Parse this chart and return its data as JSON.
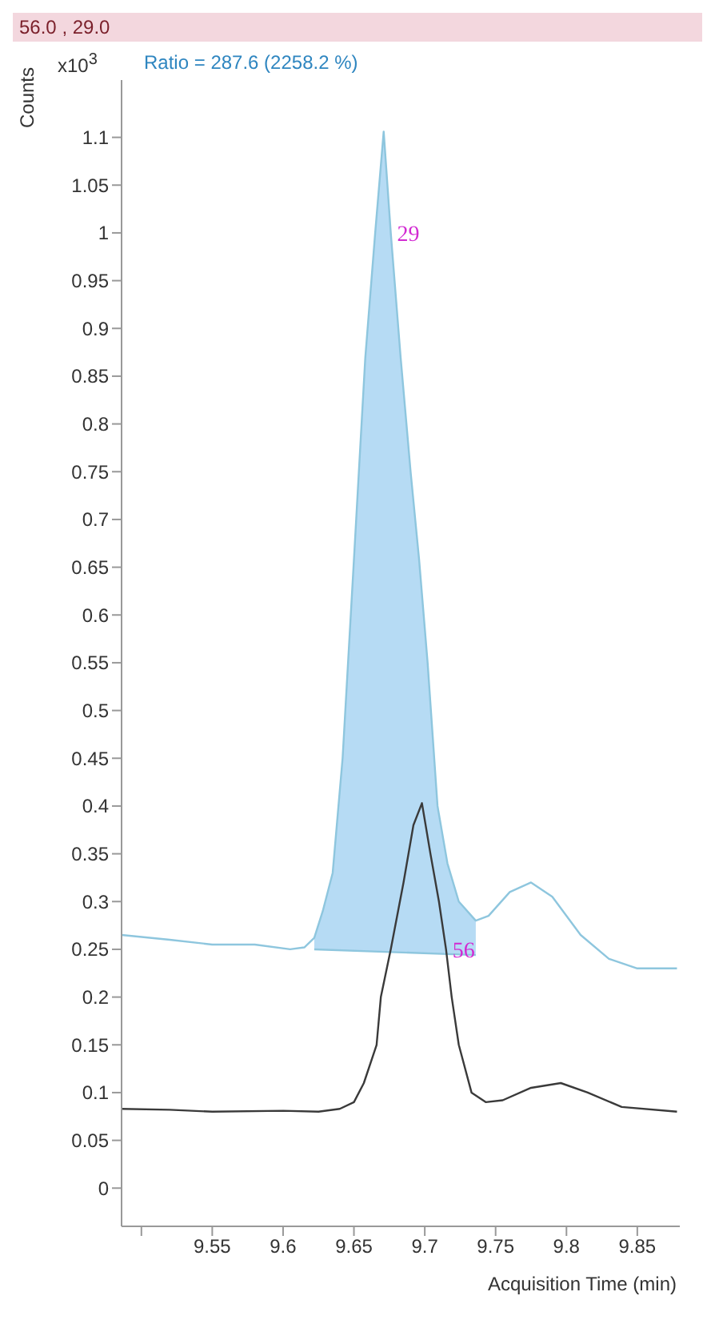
{
  "chart_data": {
    "type": "line",
    "title": "56.0 , 29.0",
    "ylabel": "Counts",
    "xlabel": "Acquisition Time (min)",
    "annotations": [
      "x10$^{3}$",
      "Ratio = 287.6 (2258.2 %)",
      {
        "text": "29",
        "x": 9.676,
        "y": 1.0
      },
      {
        "text": "56",
        "x": 9.715,
        "y": 0.25
      }
    ],
    "xlim": [
      9.486,
      9.88
    ],
    "xticks": [
      {
        "value": 9.5,
        "label": null
      },
      9.55,
      9.6,
      9.65,
      9.7,
      9.75,
      9.8,
      9.85
    ],
    "ylim": [
      -0.04,
      1.16
    ],
    "yticks": [
      0,
      0.05,
      0.1,
      0.15,
      0.2,
      0.25,
      0.3,
      0.35,
      0.4,
      0.45,
      0.5,
      0.55,
      0.6,
      0.65,
      0.7,
      0.75,
      0.8,
      0.85,
      0.9,
      0.95,
      1,
      1.05,
      1.1
    ],
    "grid": false,
    "legend": false,
    "marker": "none",
    "series": [
      {
        "type": "area",
        "color": "#a9d5f2",
        "x": [
          9.622,
          9.628,
          9.635,
          9.642,
          9.65,
          9.658,
          9.665,
          9.671,
          9.676,
          9.683,
          9.69,
          9.696,
          9.702,
          9.709,
          9.716,
          9.724,
          9.736
        ],
        "values": [
          0.262,
          0.29,
          0.33,
          0.45,
          0.658,
          0.869,
          1.0,
          1.106,
          1.0,
          0.869,
          0.75,
          0.658,
          0.55,
          0.4,
          0.34,
          0.3,
          0.28
        ]
      },
      {
        "type": "line",
        "color": "#8ec6de",
        "x": [
          9.622,
          9.736
        ],
        "values": [
          0.25,
          0.244
        ]
      },
      {
        "color": "#8ec6de",
        "x": [
          9.486,
          9.52,
          9.55,
          9.58,
          9.605,
          9.615,
          9.622,
          9.628,
          9.635,
          9.642,
          9.65,
          9.658,
          9.665,
          9.671,
          9.676,
          9.683,
          9.69,
          9.696,
          9.702,
          9.709,
          9.716,
          9.724,
          9.736,
          9.745,
          9.76,
          9.775,
          9.79,
          9.81,
          9.83,
          9.85,
          9.878
        ],
        "values": [
          0.265,
          0.26,
          0.255,
          0.255,
          0.25,
          0.252,
          0.262,
          0.29,
          0.33,
          0.45,
          0.658,
          0.869,
          1.0,
          1.106,
          1.0,
          0.869,
          0.75,
          0.658,
          0.55,
          0.4,
          0.34,
          0.3,
          0.28,
          0.285,
          0.31,
          0.32,
          0.305,
          0.265,
          0.24,
          0.23,
          0.23
        ]
      },
      {
        "color": "#3a3a3a",
        "x": [
          9.486,
          9.52,
          9.55,
          9.6,
          9.625,
          9.64,
          9.65,
          9.657,
          9.666,
          9.669,
          9.676,
          9.685,
          9.692,
          9.698,
          9.704,
          9.71,
          9.715,
          9.719,
          9.724,
          9.733,
          9.743,
          9.755,
          9.775,
          9.796,
          9.815,
          9.839,
          9.878
        ],
        "values": [
          0.083,
          0.082,
          0.08,
          0.081,
          0.08,
          0.083,
          0.09,
          0.11,
          0.15,
          0.2,
          0.25,
          0.32,
          0.38,
          0.403,
          0.35,
          0.3,
          0.25,
          0.2,
          0.15,
          0.1,
          0.09,
          0.092,
          0.105,
          0.11,
          0.1,
          0.085,
          0.08
        ]
      }
    ]
  }
}
